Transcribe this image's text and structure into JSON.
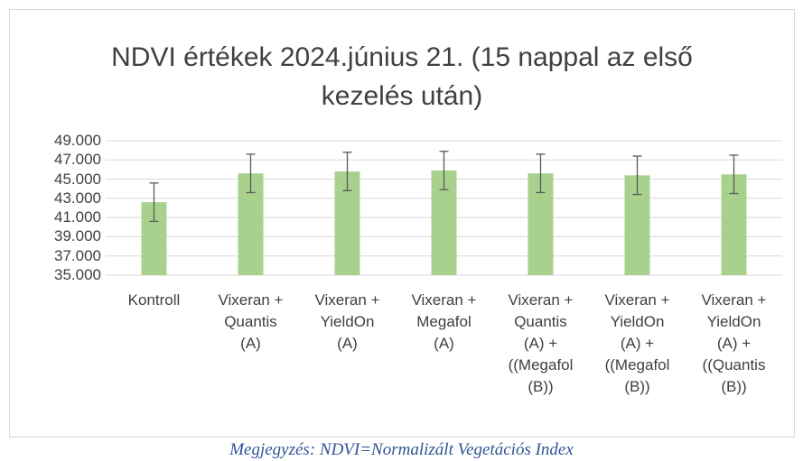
{
  "chart_data": {
    "type": "bar",
    "title": "NDVI értékek 2024.június 21. (15 nappal az első kezelés után)",
    "categories": [
      "Kontroll",
      "Vixeran +\nQuantis\n(A)",
      "Vixeran +\nYieldOn\n(A)",
      "Vixeran +\nMegafol\n(A)",
      "Vixeran +\nQuantis\n(A) +\n((Megafol\n(B))",
      "Vixeran +\nYieldOn\n(A)  +\n((Megafol\n(B))",
      "Vixeran +\nYieldOn\n(A)  +\n((Quantis\n(B))"
    ],
    "values": [
      42.6,
      45.6,
      45.8,
      45.9,
      45.6,
      45.4,
      45.5
    ],
    "errors": [
      2,
      2,
      2,
      2,
      2,
      2,
      2
    ],
    "color": "#a9d18e",
    "error_color": "#595959",
    "ylim": [
      35,
      49
    ],
    "yticks": [
      {
        "value": 35,
        "label": "35.000"
      },
      {
        "value": 37,
        "label": "37.000"
      },
      {
        "value": 39,
        "label": "39.000"
      },
      {
        "value": 41,
        "label": "41.000"
      },
      {
        "value": 43,
        "label": "43.000"
      },
      {
        "value": 45,
        "label": "45.000"
      },
      {
        "value": 47,
        "label": "47.000"
      },
      {
        "value": 49,
        "label": "49.000"
      }
    ],
    "grid": true
  },
  "note": "Megjegyzés: NDVI=Normalizált Vegetációs Index"
}
